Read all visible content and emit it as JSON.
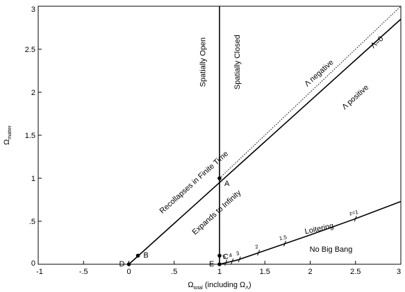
{
  "chart_data": {
    "type": "line",
    "xlabel": {
      "main": "Ω",
      "sub": "total",
      "rest": " (including Ω",
      "sub2": "Λ",
      "close": ")"
    },
    "ylabel": {
      "main": "Ω",
      "sub": "matter"
    },
    "xlim": [
      -1,
      3
    ],
    "ylim": [
      0,
      3
    ],
    "x_ticks": [
      {
        "value": -1,
        "label": "-1"
      },
      {
        "value": -0.5,
        "label": "-.5"
      },
      {
        "value": 0,
        "label": "0"
      },
      {
        "value": 0.5,
        "label": ".5"
      },
      {
        "value": 1,
        "label": "1"
      },
      {
        "value": 1.5,
        "label": "1.5"
      },
      {
        "value": 2,
        "label": "2"
      },
      {
        "value": 2.5,
        "label": "2.5"
      },
      {
        "value": 3,
        "label": "3"
      }
    ],
    "y_ticks": [
      {
        "value": 0,
        "label": "0"
      },
      {
        "value": 0.5,
        "label": ".5"
      },
      {
        "value": 1,
        "label": "1"
      },
      {
        "value": 1.5,
        "label": "1.5"
      },
      {
        "value": 2,
        "label": "2"
      },
      {
        "value": 2.5,
        "label": "2.5"
      },
      {
        "value": 3,
        "label": "3"
      }
    ],
    "lines": [
      {
        "name": "recollapse-boundary",
        "style": "solid",
        "points": [
          [
            0,
            0
          ],
          [
            3,
            2.85
          ]
        ]
      },
      {
        "name": "lambda-zero",
        "style": "dotted",
        "points": [
          [
            1,
            1
          ],
          [
            3,
            3
          ]
        ]
      },
      {
        "name": "flat-universe",
        "style": "solid",
        "points": [
          [
            1,
            0
          ],
          [
            1,
            3
          ]
        ]
      },
      {
        "name": "loitering-boundary",
        "style": "solid",
        "points": [
          [
            1,
            0
          ],
          [
            1.2,
            0.05
          ],
          [
            1.5,
            0.16
          ],
          [
            2,
            0.34
          ],
          [
            2.5,
            0.53
          ],
          [
            3,
            0.73
          ]
        ]
      }
    ],
    "points": [
      {
        "label": "A",
        "x": 1,
        "y": 1
      },
      {
        "label": "B",
        "x": 0.1,
        "y": 0.1
      },
      {
        "label": "C",
        "x": 1,
        "y": 0.1
      },
      {
        "label": "D",
        "x": 0,
        "y": 0
      },
      {
        "label": "E",
        "x": 1,
        "y": 0
      }
    ],
    "redshift_ticks": [
      {
        "label": "5",
        "x": 1.07
      },
      {
        "label": "4",
        "x": 1.14
      },
      {
        "label": "3",
        "x": 1.22
      },
      {
        "label": "2",
        "x": 1.43
      },
      {
        "label": "1.5",
        "x": 1.72
      },
      {
        "label": "z=1",
        "x": 2.5
      }
    ],
    "region_labels": [
      {
        "text": "Spatially Open",
        "x": 0.82,
        "y": 2.35,
        "angle": -90
      },
      {
        "text": "Spatially Closed",
        "x": 1.2,
        "y": 2.35,
        "angle": -90
      },
      {
        "text": "Recollapses in Finite Time",
        "x": 0.72,
        "y": 0.95,
        "angle": -42
      },
      {
        "text": "Expands to Infinity",
        "x": 0.97,
        "y": 0.6,
        "angle": -42
      },
      {
        "text": "No Big Bang",
        "x": 2.23,
        "y": 0.17,
        "angle": 0
      },
      {
        "text": "Loitering",
        "x": 2.1,
        "y": 0.41,
        "angle": -12
      }
    ],
    "annotations": [
      {
        "text": "Λ negative",
        "x": 2.1,
        "y": 2.22,
        "angle": -42
      },
      {
        "text": "Λ=0",
        "x": 2.74,
        "y": 2.58,
        "angle": -42
      },
      {
        "text": "Λ positive",
        "x": 2.5,
        "y": 1.94,
        "angle": -42
      }
    ],
    "grid": false,
    "colors": {
      "ink": "#000000",
      "background": "#ffffff"
    }
  }
}
